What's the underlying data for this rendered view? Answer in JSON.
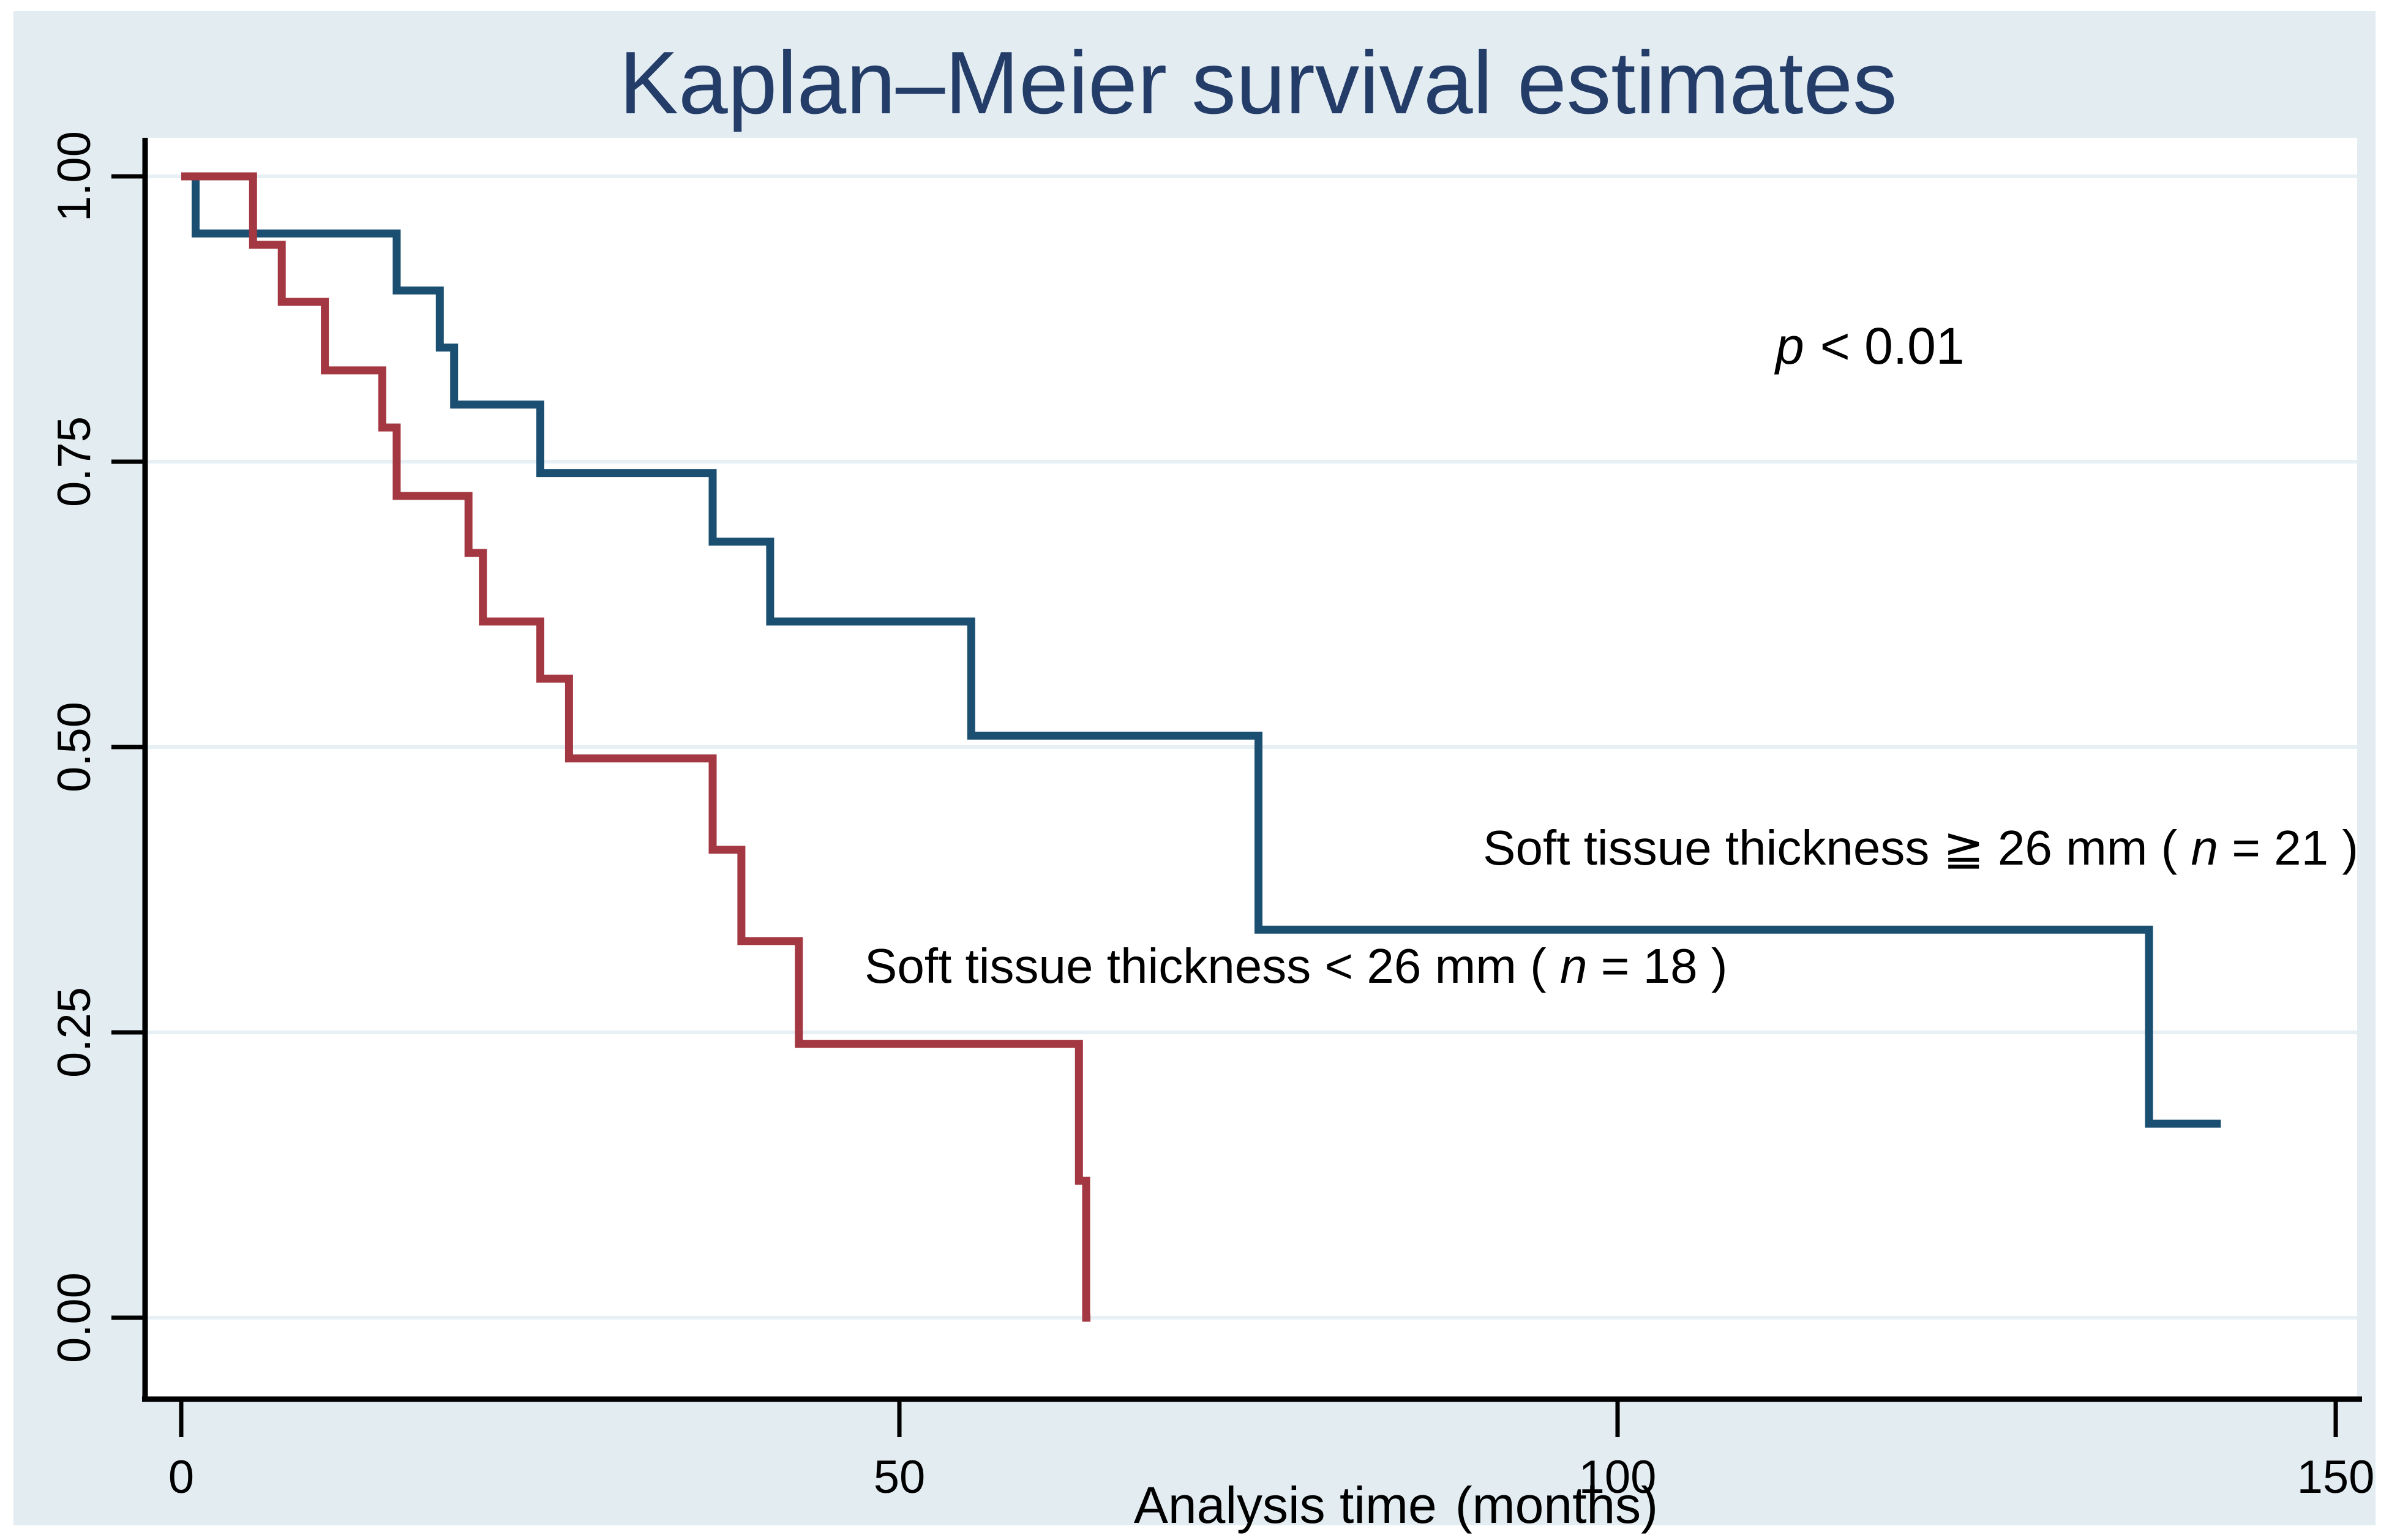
{
  "chart_data": {
    "type": "line",
    "subtype": "kaplan-meier-step",
    "title": "Kaplan–Meier survival estimates",
    "xlabel_main": "Analysis time",
    "xlabel_unit": "(months)",
    "ylabel": "",
    "xlim": [
      0,
      150
    ],
    "ylim": [
      0.0,
      1.0
    ],
    "x_ticks": [
      0,
      50,
      100,
      150
    ],
    "x_tick_labels": [
      "0",
      "50",
      "100",
      "150"
    ],
    "y_ticks": [
      1.0,
      0.75,
      0.5,
      0.25,
      0.0
    ],
    "y_tick_labels": [
      "1.00",
      "0.75",
      "0.50",
      "0.25",
      "0.00"
    ],
    "grid": "horizontal",
    "legend_position": "inline-annotations",
    "annotation": {
      "var": "p",
      "rest": "< 0.01"
    },
    "colors": {
      "figure_background": "#e2ecf1",
      "plot_background": "#ffffff",
      "gridline": "#e7f0f5",
      "axis": "#000000",
      "title": "#233c68",
      "series_ge26": "#1a4f72",
      "series_lt26": "#a43842"
    },
    "series": [
      {
        "id": "ge26mm",
        "label_prefix": "Soft tissue thickness ≧ 26 mm ( ",
        "label_var": "n",
        "label_suffix": " = 21 )",
        "n": 21,
        "color": "#1a4f72",
        "points": [
          [
            0,
            1.0
          ],
          [
            1,
            0.95
          ],
          [
            15,
            0.9
          ],
          [
            18,
            0.85
          ],
          [
            19,
            0.8
          ],
          [
            25,
            0.74
          ],
          [
            37,
            0.68
          ],
          [
            41,
            0.61
          ],
          [
            55,
            0.51
          ],
          [
            75,
            0.34
          ],
          [
            137,
            0.17
          ]
        ],
        "end_time": 142
      },
      {
        "id": "lt26mm",
        "label_prefix": "Soft tissue thickness < 26 mm ( ",
        "label_var": "n",
        "label_suffix": " = 18 )",
        "n": 18,
        "color": "#a43842",
        "points": [
          [
            0,
            1.0
          ],
          [
            5,
            0.94
          ],
          [
            7,
            0.89
          ],
          [
            10,
            0.83
          ],
          [
            14,
            0.78
          ],
          [
            15,
            0.72
          ],
          [
            20,
            0.67
          ],
          [
            21,
            0.61
          ],
          [
            25,
            0.56
          ],
          [
            27,
            0.49
          ],
          [
            37,
            0.41
          ],
          [
            39,
            0.33
          ],
          [
            43,
            0.24
          ],
          [
            62.5,
            0.12
          ],
          [
            63,
            0.0
          ]
        ],
        "end_time": 63.3
      }
    ]
  }
}
